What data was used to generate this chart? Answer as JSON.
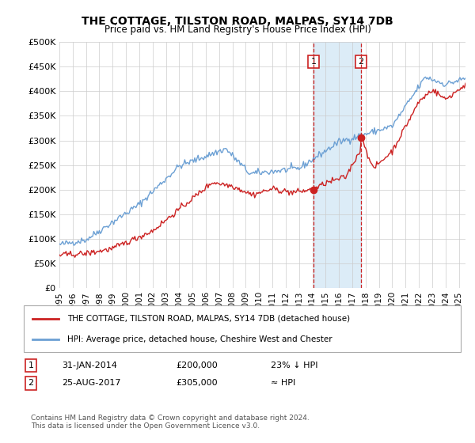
{
  "title": "THE COTTAGE, TILSTON ROAD, MALPAS, SY14 7DB",
  "subtitle": "Price paid vs. HM Land Registry's House Price Index (HPI)",
  "ylabel_ticks": [
    "£0",
    "£50K",
    "£100K",
    "£150K",
    "£200K",
    "£250K",
    "£300K",
    "£350K",
    "£400K",
    "£450K",
    "£500K"
  ],
  "ytick_values": [
    0,
    50000,
    100000,
    150000,
    200000,
    250000,
    300000,
    350000,
    400000,
    450000,
    500000
  ],
  "xlim_start": 1995.0,
  "xlim_end": 2025.5,
  "ylim": [
    0,
    500000
  ],
  "transaction1": {
    "date_num": 2014.08,
    "price": 200000,
    "label": "1"
  },
  "transaction2": {
    "date_num": 2017.65,
    "price": 305000,
    "label": "2"
  },
  "legend_line1": "THE COTTAGE, TILSTON ROAD, MALPAS, SY14 7DB (detached house)",
  "legend_line2": "HPI: Average price, detached house, Cheshire West and Chester",
  "footer": "Contains HM Land Registry data © Crown copyright and database right 2024.\nThis data is licensed under the Open Government Licence v3.0.",
  "hpi_color": "#6ca0d4",
  "price_color": "#cc2222",
  "shade_color": "#d9eaf7",
  "vline_color": "#cc2222",
  "background_color": "#ffffff",
  "grid_color": "#cccccc"
}
